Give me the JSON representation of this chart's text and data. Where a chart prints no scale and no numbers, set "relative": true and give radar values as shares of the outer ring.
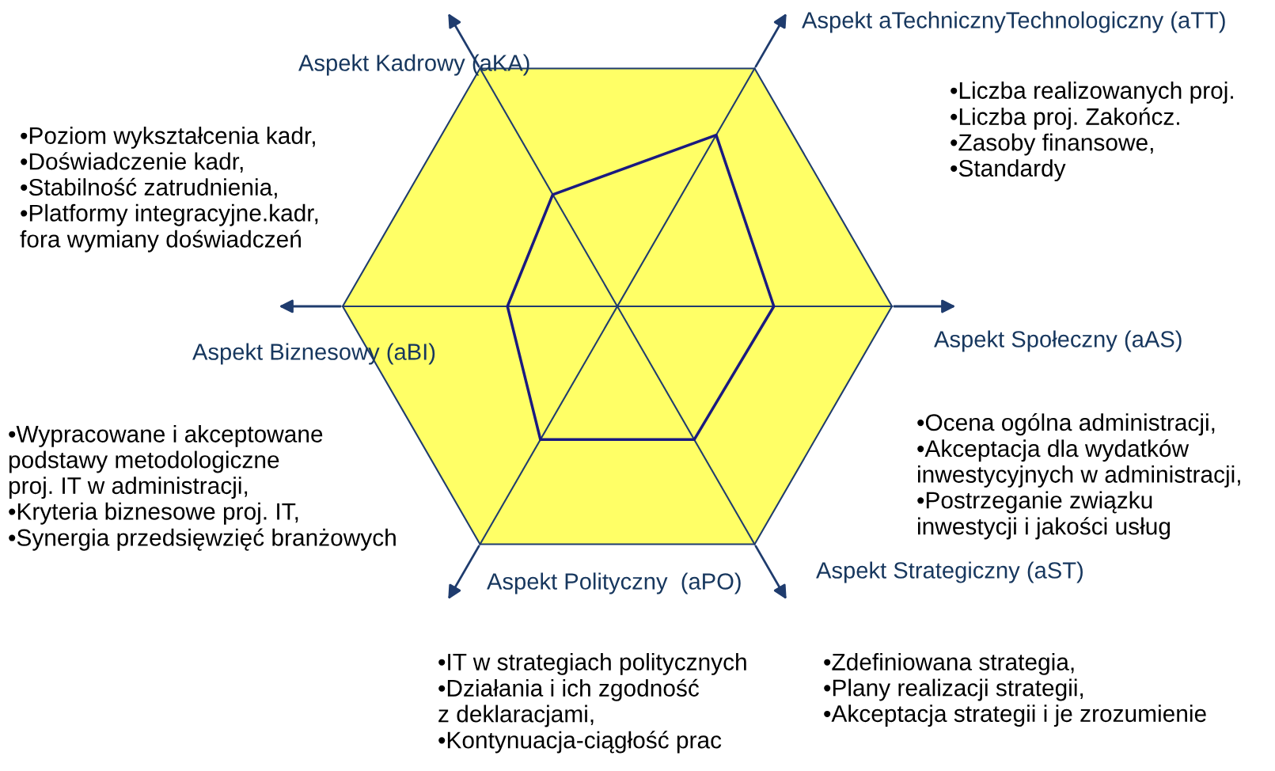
{
  "chart_data": {
    "type": "radar",
    "relative": true,
    "categories": [
      "Aspekt aTechnicznyTechnologiczny (aTT)",
      "Aspekt Społeczny (aAS)",
      "Aspekt Strategiczny (aST)",
      "Aspekt Polityczny  (aPO)",
      "Aspekt Biznesowy (aBI)",
      "Aspekt Kadrowy (aKA)"
    ],
    "series": [
      {
        "color": "#1a1a80",
        "values": [
          0.72,
          0.57,
          0.56,
          0.56,
          0.4,
          0.47
        ]
      }
    ],
    "annotations": [
      "•Liczba realizowanych proj.\n•Liczba proj. Zakończ.\n•Zasoby finansowe,\n•Standardy",
      "•Ocena ogólna administracji,\n•Akceptacja dla wydatków\ninwestycyjnych w administracji,\n•Postrzeganie związku\ninwestycji i jakości usług",
      "•Zdefiniowana strategia,\n•Plany realizacji strategii,\n•Akceptacja strategii i je zrozumienie",
      "•IT w strategiach politycznych\n•Działania i ich zgodność\nz deklaracjami,\n•Kontynuacja-ciągłość prac",
      "•Wypracowane i akceptowane\npodstawy metodologiczne\nproj. IT w administracji,\n•Kryteria biznesowe proj. IT,\n•Synergia przedsięwzięć branżowych",
      "•Poziom wykształcenia kadr,\n•Doświadczenie kadr,\n•Stabilność zatrudnienia,\n•Platformy integracyjne.kadr,\nfora wymiany doświadczeń"
    ]
  }
}
